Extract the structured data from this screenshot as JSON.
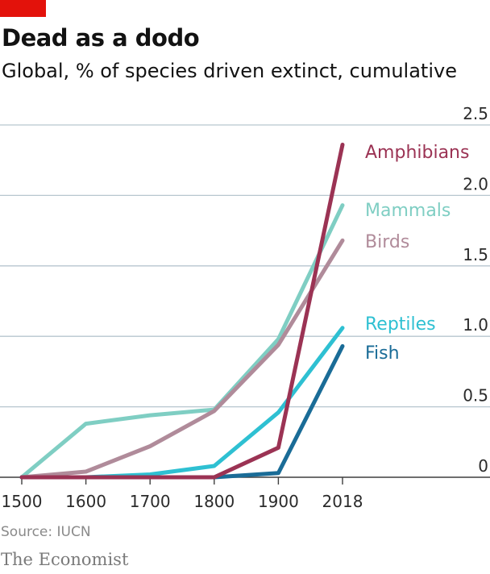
{
  "header": {
    "title": "Dead as a dodo",
    "subtitle": "Global, % of species driven extinct, cumulative"
  },
  "footer": {
    "source": "Source: IUCN",
    "brand": "The Economist"
  },
  "colors": {
    "accent": "#e3120b",
    "grid": "#b7c6cf",
    "axis": "#3f3f3f",
    "text": "#121212"
  },
  "chart_data": {
    "type": "line",
    "x": [
      "1500",
      "1600",
      "1700",
      "1800",
      "1900",
      "2018"
    ],
    "yticks": [
      "0",
      "0.5",
      "1.0",
      "1.5",
      "2.0",
      "2.5"
    ],
    "ylim": [
      0,
      2.5
    ],
    "grid": true,
    "series": [
      {
        "name": "Mammals",
        "color": "#7fcec3",
        "values": [
          0.0,
          0.38,
          0.44,
          0.48,
          0.98,
          1.93
        ]
      },
      {
        "name": "Birds",
        "color": "#b08b9a",
        "values": [
          0.0,
          0.04,
          0.22,
          0.47,
          0.94,
          1.68
        ]
      },
      {
        "name": "Reptiles",
        "color": "#2ec0d2",
        "values": [
          0.0,
          0.0,
          0.02,
          0.08,
          0.46,
          1.06
        ]
      },
      {
        "name": "Fish",
        "color": "#1a6c97",
        "values": [
          0.0,
          0.0,
          0.0,
          0.0,
          0.03,
          0.93
        ]
      },
      {
        "name": "Amphibians",
        "color": "#9b3354",
        "values": [
          0.0,
          0.0,
          0.0,
          0.0,
          0.21,
          2.36
        ]
      }
    ]
  }
}
